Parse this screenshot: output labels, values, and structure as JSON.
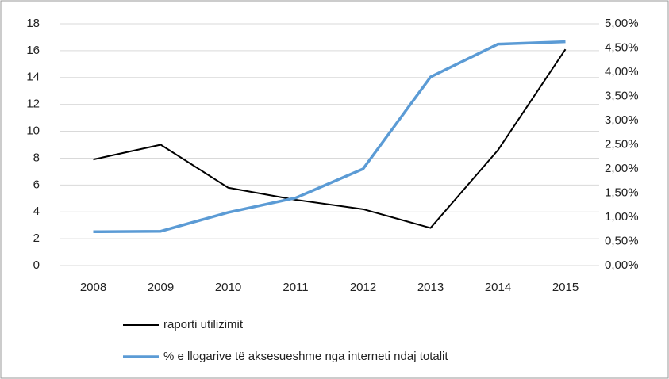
{
  "chart_data": {
    "type": "line",
    "categories": [
      "2008",
      "2009",
      "2010",
      "2011",
      "2012",
      "2013",
      "2014",
      "2015"
    ],
    "series": [
      {
        "name": "raporti utilizimit",
        "color": "#000000",
        "values": [
          7.9,
          9.0,
          5.8,
          4.9,
          4.2,
          2.8,
          8.6,
          16.1
        ]
      },
      {
        "name": "% e llogarive të aksesueshme nga interneti ndaj totalit",
        "color": "#5b9bd5",
        "axis": "y2",
        "values": [
          0.7,
          0.71,
          1.1,
          1.4,
          2.0,
          3.9,
          4.58,
          4.63
        ]
      }
    ],
    "ylim": [
      0,
      18
    ],
    "yticks": [
      0,
      2,
      4,
      6,
      8,
      10,
      12,
      14,
      16,
      18
    ],
    "y2lim": [
      0,
      5
    ],
    "y2ticks": [
      {
        "value": 0,
        "label": "0,00%"
      },
      {
        "value": 0.5,
        "label": "0,50%"
      },
      {
        "value": 1,
        "label": "1,00%"
      },
      {
        "value": 1.5,
        "label": "1,50%"
      },
      {
        "value": 2,
        "label": "2,00%"
      },
      {
        "value": 2.5,
        "label": "2,50%"
      },
      {
        "value": 3,
        "label": "3,00%"
      },
      {
        "value": 3.5,
        "label": "3,50%"
      },
      {
        "value": 4,
        "label": "4,00%"
      },
      {
        "value": 4.5,
        "label": "4,50%"
      },
      {
        "value": 5,
        "label": "5,00%"
      }
    ],
    "grid": true,
    "legend": "bottom"
  }
}
